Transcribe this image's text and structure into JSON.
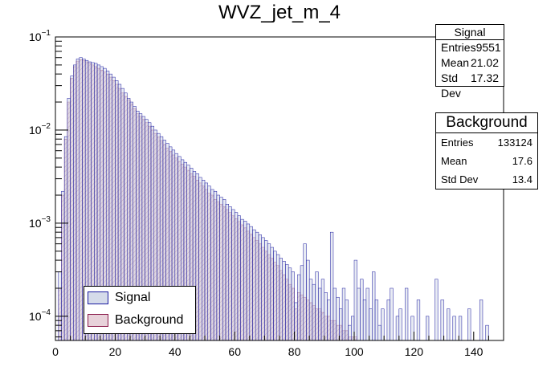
{
  "chart_data": {
    "type": "histogram",
    "title": "WVZ_jet_m_4",
    "xlabel": "",
    "ylabel": "",
    "xlim": [
      0,
      150
    ],
    "yscale": "log",
    "ylim": [
      5.5e-05,
      0.1
    ],
    "x_ticks": [
      "0",
      "20",
      "40",
      "60",
      "80",
      "100",
      "120",
      "140"
    ],
    "y_ticks": [
      {
        "value": 0.1,
        "base": "10",
        "exp": "−1"
      },
      {
        "value": 0.01,
        "base": "10",
        "exp": "−2"
      },
      {
        "value": 0.001,
        "base": "10",
        "exp": "−3"
      },
      {
        "value": 0.0001,
        "base": "10",
        "exp": "−4"
      }
    ],
    "bin_width": 1,
    "series": [
      {
        "name": "Signal",
        "line_color": "#1a1aa0",
        "fill_color": "#d5dbea",
        "values": [
          0,
          0.0003,
          0.0022,
          0.0085,
          0.022,
          0.038,
          0.05,
          0.058,
          0.06,
          0.058,
          0.056,
          0.054,
          0.053,
          0.052,
          0.05,
          0.048,
          0.046,
          0.043,
          0.04,
          0.037,
          0.034,
          0.031,
          0.028,
          0.025,
          0.022,
          0.02,
          0.018,
          0.016,
          0.015,
          0.014,
          0.013,
          0.012,
          0.011,
          0.01,
          0.0092,
          0.0085,
          0.0078,
          0.0072,
          0.0066,
          0.0061,
          0.0056,
          0.0052,
          0.0048,
          0.0045,
          0.0042,
          0.0039,
          0.0036,
          0.0034,
          0.0031,
          0.0029,
          0.0027,
          0.0025,
          0.0023,
          0.0022,
          0.002,
          0.0019,
          0.0018,
          0.0016,
          0.0015,
          0.0014,
          0.0013,
          0.0012,
          0.0011,
          0.00105,
          0.00098,
          0.00092,
          0.00085,
          0.0008,
          0.00075,
          0.0007,
          0.00065,
          0.0006,
          0.00055,
          0.0005,
          0.00046,
          0.00042,
          0.00039,
          0.00036,
          0.00033,
          0.0003,
          0.00014,
          0.00028,
          0.00035,
          0.0006,
          0.0004,
          0.00025,
          0.00022,
          0.0003,
          0.0002,
          0.00025,
          0.00018,
          0.00015,
          0.0008,
          0.0002,
          0.00016,
          0.00012,
          0.0002,
          0.00015,
          8e-05,
          0.0001,
          0.0004,
          0.0002,
          0.00025,
          0.00015,
          0.0002,
          0.00012,
          0.0003,
          0.00015,
          8e-05,
          0.00012,
          0,
          0.00015,
          0.0002,
          0,
          0.0001,
          0.00012,
          0,
          0.0002,
          0,
          0.0001,
          0,
          0.00015,
          0,
          0,
          0.0001,
          0,
          0,
          0.00025,
          0,
          0.00015,
          0,
          0.00012,
          0,
          0.0001,
          0,
          0.0001,
          0,
          0,
          0.00012,
          0,
          0,
          0,
          0.00015,
          0,
          8e-05,
          0,
          0,
          0,
          0,
          0
        ]
      },
      {
        "name": "Background",
        "line_color": "#8a1a4a",
        "fill_color": "#e8d2da",
        "values": [
          0,
          0.0002,
          0.002,
          0.008,
          0.02,
          0.036,
          0.048,
          0.055,
          0.057,
          0.056,
          0.054,
          0.052,
          0.05,
          0.048,
          0.046,
          0.044,
          0.042,
          0.04,
          0.037,
          0.034,
          0.031,
          0.028,
          0.025,
          0.023,
          0.021,
          0.019,
          0.017,
          0.015,
          0.014,
          0.013,
          0.012,
          0.011,
          0.01,
          0.0092,
          0.0084,
          0.0077,
          0.007,
          0.0064,
          0.0059,
          0.0054,
          0.005,
          0.0046,
          0.0043,
          0.004,
          0.0037,
          0.0034,
          0.0032,
          0.0029,
          0.0027,
          0.0025,
          0.0023,
          0.0021,
          0.002,
          0.0018,
          0.0017,
          0.0016,
          0.0015,
          0.0014,
          0.0013,
          0.0012,
          0.00112,
          0.00104,
          0.00096,
          0.00089,
          0.00082,
          0.00076,
          0.0007,
          0.00065,
          0.0006,
          0.00055,
          0.0005,
          0.00046,
          0.00042,
          0.00038,
          0.00035,
          0.00031,
          0.00028,
          0.00025,
          0.00022,
          0.0002,
          0.00012,
          0.00018,
          0.00017,
          0.00016,
          0.00015,
          0.00014,
          0.00013,
          0.00012,
          0.00012,
          0.00011,
          0.0001,
          0.0001,
          9e-05,
          9e-05,
          8e-05,
          8e-05,
          7e-05,
          7e-05,
          6e-05,
          6e-05,
          6e-05,
          0,
          0,
          0,
          0,
          0,
          0,
          0,
          0,
          0,
          0,
          0,
          0,
          0,
          0,
          0,
          0,
          0,
          0,
          0,
          0,
          0,
          0,
          0,
          0,
          0,
          0,
          0,
          0,
          0,
          0,
          0,
          0,
          0,
          0,
          0,
          0,
          0,
          0,
          0,
          0,
          0,
          0,
          0,
          0,
          0,
          0,
          0,
          0,
          0
        ]
      }
    ],
    "legend": {
      "position": "bottom-left",
      "entries": [
        "Signal",
        "Background"
      ]
    },
    "stats": {
      "signal": {
        "name": "Signal",
        "entries_label": "Entries",
        "entries": "9551",
        "mean_label": "Mean",
        "mean": "21.02",
        "std_label": "Std Dev",
        "std": "17.32"
      },
      "background": {
        "name": "Background",
        "entries_label": "Entries",
        "entries": "133124",
        "mean_label": "Mean",
        "mean": "17.6",
        "std_label": "Std Dev",
        "std": "13.4"
      }
    }
  }
}
